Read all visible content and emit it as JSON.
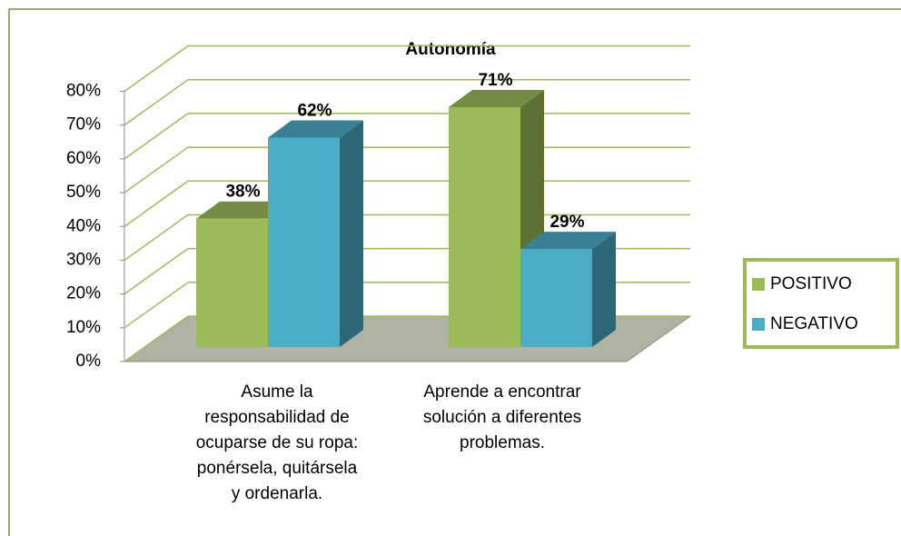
{
  "chart_data": {
    "type": "bar",
    "title": "Autonomía",
    "categories": [
      "Asume la responsabilidad de ocuparse de su ropa: ponérsela, quitársela y ordenarla.",
      "Aprende a encontrar solución a diferentes problemas."
    ],
    "series": [
      {
        "name": "POSITIVO",
        "color": "#9bbb59",
        "values": [
          38,
          71
        ],
        "value_labels": [
          "38%",
          "71%"
        ]
      },
      {
        "name": "NEGATIVO",
        "color": "#4bacc6",
        "values": [
          62,
          29
        ],
        "value_labels": [
          "62%",
          "29%"
        ]
      }
    ],
    "ylim": [
      0,
      80
    ],
    "yticks": [
      {
        "value": 0,
        "label": "0%"
      },
      {
        "value": 10,
        "label": "10%"
      },
      {
        "value": 20,
        "label": "20%"
      },
      {
        "value": 30,
        "label": "30%"
      },
      {
        "value": 40,
        "label": "40%"
      },
      {
        "value": 50,
        "label": "50%"
      },
      {
        "value": 60,
        "label": "60%"
      },
      {
        "value": 70,
        "label": "70%"
      },
      {
        "value": 80,
        "label": "80%"
      }
    ],
    "grid": true,
    "legend": "right"
  }
}
